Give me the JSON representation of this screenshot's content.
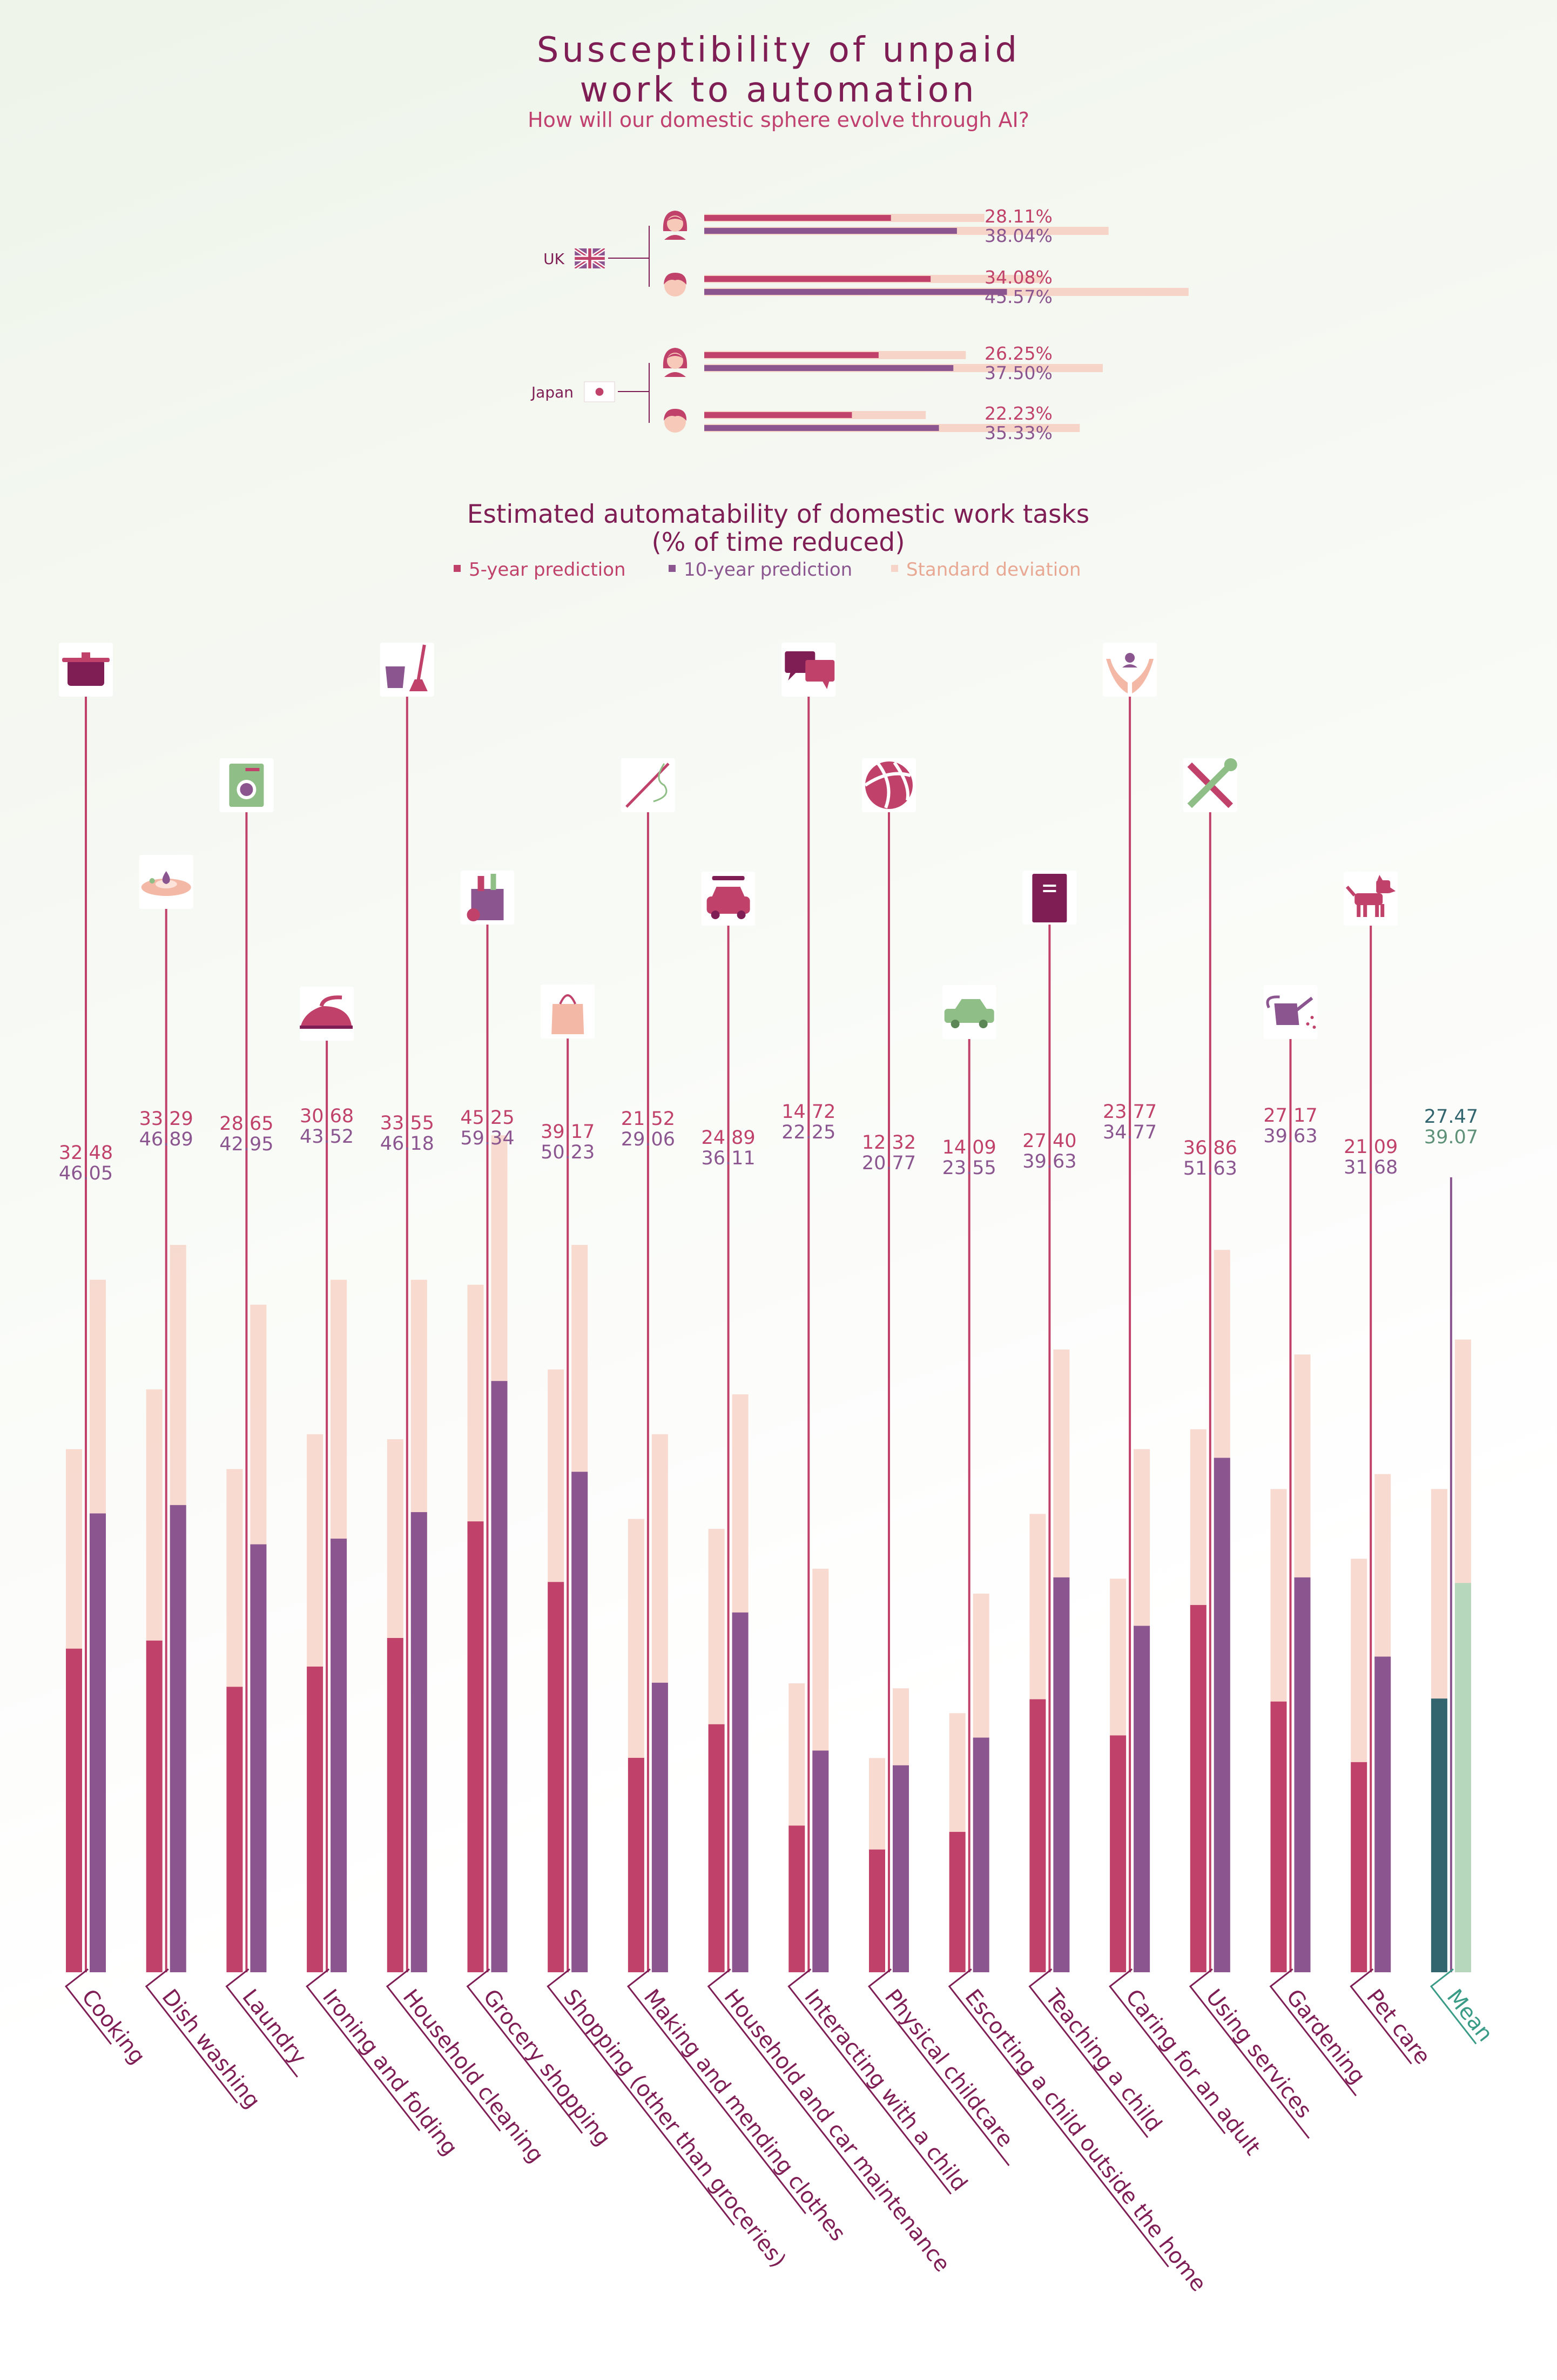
{
  "title_line1": "Susceptibility of unpaid",
  "title_line2": "work to automation",
  "subtitle": "How will our domestic sphere evolve through AI?",
  "colors": {
    "five_year": "#c0426b",
    "ten_year": "#8b568f",
    "std_dev": "#f7d4c8",
    "mean_five": "#33656f",
    "mean_ten": "#b7d7bd",
    "mean_text": "#3a9b86",
    "title": "#7e1e55",
    "label": "#7e1e55"
  },
  "country_summary": [
    {
      "country": "UK",
      "flag": "uk-flag",
      "rows": [
        {
          "gender": "female",
          "five_year": "28.11%",
          "ten_year": "38.04%",
          "v5": 28.11,
          "v10": 38.04
        },
        {
          "gender": "male",
          "five_year": "34.08%",
          "ten_year": "45.57%",
          "v5": 34.08,
          "v10": 45.57
        }
      ]
    },
    {
      "country": "Japan",
      "flag": "japan-flag",
      "rows": [
        {
          "gender": "female",
          "five_year": "26.25%",
          "ten_year": "37.50%",
          "v5": 26.25,
          "v10": 37.5
        },
        {
          "gender": "male",
          "five_year": "22.23%",
          "ten_year": "35.33%",
          "v5": 22.23,
          "v10": 35.33
        }
      ]
    }
  ],
  "chart_title": "Estimated automatability of domestic work tasks",
  "chart_subtitle": "(% of time reduced)",
  "legend": {
    "five_year": "5-year prediction",
    "ten_year": "10-year prediction",
    "std": "Standard deviation"
  },
  "chart_data": {
    "type": "bar",
    "title": "Estimated automatability of domestic work tasks",
    "ylabel": "% of time reduced",
    "ylim": [
      0,
      80
    ],
    "categories": [
      "Cooking",
      "Dish washing",
      "Laundry",
      "Ironing and folding",
      "Household cleaning",
      "Grocery shopping",
      "Shopping (other than groceries)",
      "Making and mending clothes",
      "Household and car maintenance",
      "Interacting with a child",
      "Physical childcare",
      "Escorting a child outside the home",
      "Teaching a child",
      "Caring for an adult",
      "Using services",
      "Gardening",
      "Pet care",
      "Mean"
    ],
    "icons": [
      "pot-icon",
      "dish-icon",
      "washing-machine-icon",
      "iron-icon",
      "bucket-mop-icon",
      "grocery-bag-icon",
      "shopping-bag-icon",
      "needle-thread-icon",
      "car-wrench-icon",
      "speech-bubbles-icon",
      "ball-icon",
      "small-car-icon",
      "book-icon",
      "caring-hands-icon",
      "tools-icon",
      "watering-can-icon",
      "dog-icon",
      ""
    ],
    "series": [
      {
        "name": "5-year prediction",
        "values": [
          32.48,
          33.29,
          28.65,
          30.68,
          33.55,
          45.25,
          39.17,
          21.52,
          24.89,
          14.72,
          12.32,
          14.09,
          27.4,
          23.77,
          36.86,
          27.17,
          21.09,
          27.47
        ],
        "std_top": [
          52.5,
          58.5,
          50.5,
          54.0,
          53.5,
          69.0,
          60.5,
          45.5,
          44.5,
          29.0,
          21.5,
          26.0,
          46.0,
          39.5,
          54.5,
          48.5,
          41.5,
          48.5
        ]
      },
      {
        "name": "10-year prediction",
        "values": [
          46.05,
          46.89,
          42.95,
          43.52,
          46.18,
          59.34,
          50.23,
          29.06,
          36.11,
          22.25,
          20.77,
          23.55,
          39.63,
          34.77,
          51.63,
          39.63,
          31.68,
          39.07
        ],
        "std_top": [
          69.5,
          73.0,
          67.0,
          69.5,
          69.5,
          84.0,
          73.0,
          54.0,
          58.0,
          40.5,
          28.5,
          38.0,
          62.5,
          52.5,
          72.5,
          62.0,
          50.0,
          63.5
        ]
      }
    ]
  }
}
